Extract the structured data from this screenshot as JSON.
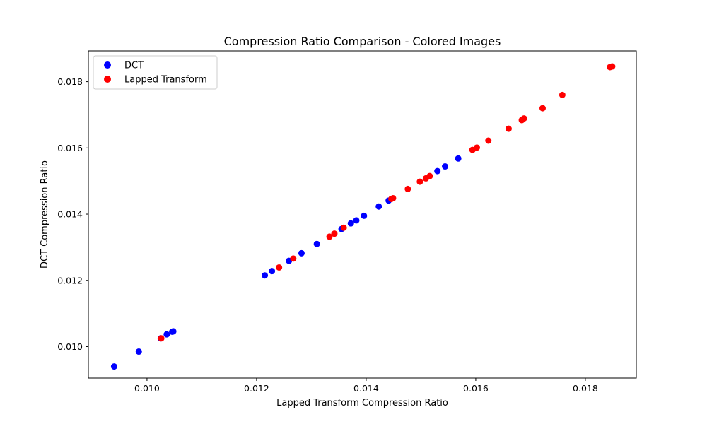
{
  "chart_data": {
    "type": "scatter",
    "title": "Compression Ratio Comparison - Colored Images",
    "xlabel": "Lapped Transform Compression Ratio",
    "ylabel": "DCT Compression Ratio",
    "xlim": [
      0.00893,
      0.01893
    ],
    "ylim": [
      0.00905,
      0.01893
    ],
    "x_ticks": [
      "0.010",
      "0.012",
      "0.014",
      "0.016",
      "0.018"
    ],
    "y_ticks": [
      "0.010",
      "0.012",
      "0.014",
      "0.016",
      "0.018"
    ],
    "legend": {
      "position": "top-left"
    },
    "grid": false,
    "series": [
      {
        "name": "DCT",
        "color": "#0000ff",
        "points": [
          [
            0.0094,
            0.0094
          ],
          [
            0.00985,
            0.00985
          ],
          [
            0.01025,
            0.01025
          ],
          [
            0.01036,
            0.01037
          ],
          [
            0.01046,
            0.01045
          ],
          [
            0.01048,
            0.01046
          ],
          [
            0.01215,
            0.01215
          ],
          [
            0.01228,
            0.01228
          ],
          [
            0.01259,
            0.01259
          ],
          [
            0.01282,
            0.01282
          ],
          [
            0.0131,
            0.0131
          ],
          [
            0.01355,
            0.01355
          ],
          [
            0.01372,
            0.01372
          ],
          [
            0.01382,
            0.01381
          ],
          [
            0.01396,
            0.01395
          ],
          [
            0.01423,
            0.01423
          ],
          [
            0.01441,
            0.01441
          ],
          [
            0.0153,
            0.0153
          ],
          [
            0.01544,
            0.01544
          ],
          [
            0.01568,
            0.01568
          ]
        ]
      },
      {
        "name": "Lapped Transform",
        "color": "#ff0000",
        "points": [
          [
            0.01026,
            0.01025
          ],
          [
            0.01241,
            0.01239
          ],
          [
            0.01267,
            0.01266
          ],
          [
            0.01333,
            0.01332
          ],
          [
            0.01342,
            0.01341
          ],
          [
            0.01359,
            0.01359
          ],
          [
            0.01446,
            0.01446
          ],
          [
            0.01449,
            0.01448
          ],
          [
            0.01476,
            0.01476
          ],
          [
            0.01498,
            0.01498
          ],
          [
            0.01509,
            0.01508
          ],
          [
            0.01516,
            0.01515
          ],
          [
            0.01594,
            0.01594
          ],
          [
            0.01602,
            0.01601
          ],
          [
            0.01623,
            0.01622
          ],
          [
            0.0166,
            0.01658
          ],
          [
            0.01684,
            0.01684
          ],
          [
            0.01688,
            0.01689
          ],
          [
            0.01722,
            0.0172
          ],
          [
            0.01758,
            0.0176
          ],
          [
            0.01845,
            0.01844
          ],
          [
            0.01849,
            0.01846
          ]
        ]
      }
    ]
  }
}
